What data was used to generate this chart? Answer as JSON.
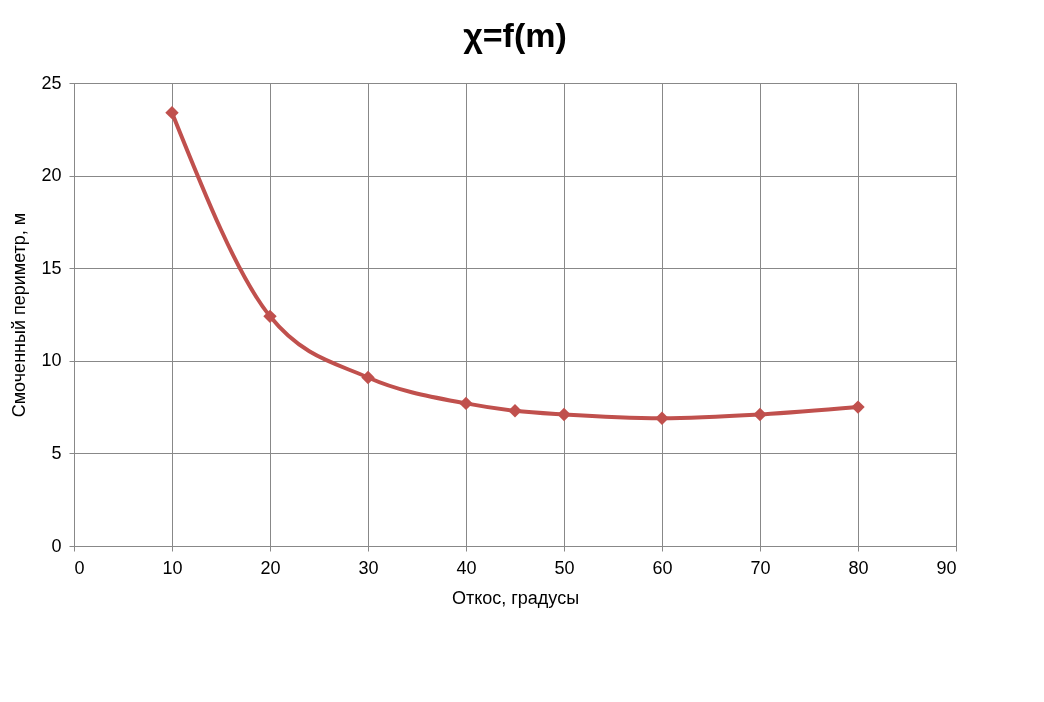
{
  "chart_data": {
    "type": "line",
    "title": "χ=f(m)",
    "xlabel": "Откос, градусы",
    "ylabel": "Смоченный периметр, м",
    "x": [
      10,
      20,
      30,
      40,
      45,
      50,
      60,
      70,
      80
    ],
    "series": [
      {
        "color": "#c0504d",
        "values": [
          23.4,
          12.4,
          9.1,
          7.7,
          7.3,
          7.1,
          6.9,
          7.1,
          7.5
        ]
      }
    ],
    "xlim": [
      0,
      90
    ],
    "xticks": [
      0,
      10,
      20,
      30,
      40,
      50,
      60,
      70,
      80,
      90
    ],
    "ylim": [
      0,
      25
    ],
    "yticks": [
      0,
      5,
      10,
      15,
      20,
      25
    ],
    "grid": true,
    "marker": "diamond",
    "line_style": "solid"
  }
}
